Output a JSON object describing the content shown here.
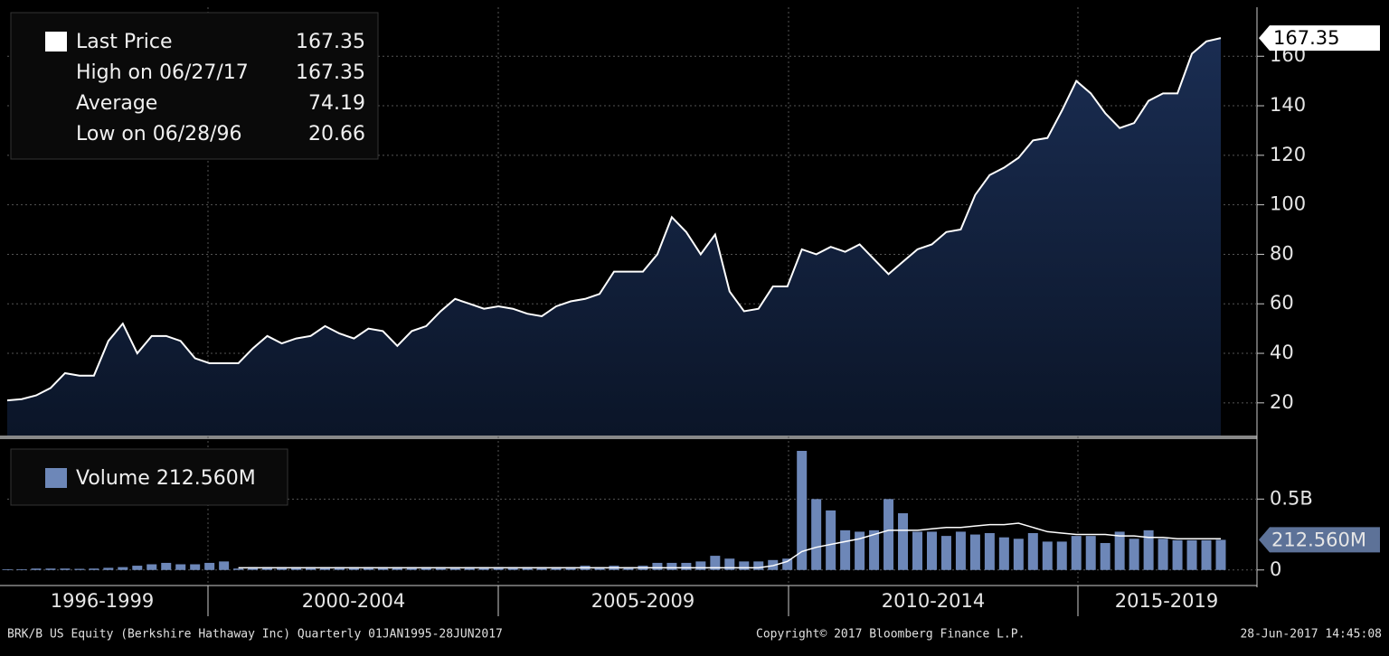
{
  "chart_data": [
    {
      "type": "area",
      "grid": true,
      "legend": [
        {
          "label": "Last Price",
          "value": 167.35
        },
        {
          "label": "High on 06/27/17",
          "value": 167.35
        },
        {
          "label": "Average",
          "value": 74.19
        },
        {
          "label": "Low on 06/28/96",
          "value": 20.66
        }
      ],
      "categories": [
        null,
        null,
        null,
        null,
        null,
        null,
        null,
        null,
        null,
        null,
        null,
        null,
        null,
        null,
        null,
        null,
        null,
        null,
        null,
        null,
        null,
        null,
        null,
        null,
        null,
        null,
        null,
        null,
        null,
        null,
        null,
        null,
        null,
        null,
        null,
        null,
        null,
        null,
        null,
        null,
        null,
        null,
        null,
        null,
        null,
        null,
        null,
        null,
        null,
        null,
        null,
        null,
        null,
        null,
        null,
        null,
        null,
        null,
        null,
        null,
        null,
        null,
        null,
        null,
        null,
        null,
        null,
        null,
        null,
        null,
        null,
        null,
        null,
        null,
        null,
        null,
        null,
        null,
        null,
        null,
        null,
        null,
        null,
        null,
        null
      ],
      "series": [
        {
          "name": "Last Price",
          "color": "#ffffff",
          "values": [
            21,
            21.5,
            23,
            26,
            32,
            31,
            31,
            45,
            52,
            40,
            47,
            47,
            45,
            38,
            36,
            36,
            36,
            42,
            47,
            44,
            46,
            47,
            51,
            48,
            46,
            50,
            49,
            43,
            49,
            51,
            57,
            62,
            60,
            58,
            59,
            58,
            56,
            55,
            59,
            61,
            62,
            64,
            73,
            73,
            73,
            80,
            95,
            89,
            80,
            88,
            65,
            57,
            58,
            67,
            67,
            82,
            80,
            83,
            81,
            84,
            78,
            72,
            77,
            82,
            84,
            89,
            90,
            104,
            112,
            115,
            119,
            126,
            127,
            138,
            150,
            145,
            137,
            131,
            133,
            142,
            145,
            145,
            161,
            166,
            167.35
          ]
        }
      ],
      "ylim": [
        6.8,
        179.8
      ],
      "yticks": [
        20,
        40,
        60,
        80,
        100,
        120,
        140,
        160
      ]
    },
    {
      "type": "bar",
      "grid": true,
      "legend": [
        {
          "label": "Volume 212.560M"
        }
      ],
      "x_labels": [
        "1996-1999",
        "2000-2004",
        "2005-2009",
        "2010-2014",
        "2015-2019"
      ],
      "series": [
        {
          "name": "Volume",
          "color": "#6d87b8",
          "values": [
            0.005,
            0.005,
            0.01,
            0.01,
            0.01,
            0.008,
            0.01,
            0.015,
            0.02,
            0.03,
            0.04,
            0.05,
            0.04,
            0.04,
            0.05,
            0.06,
            0.01,
            0.02,
            0.02,
            0.02,
            0.02,
            0.02,
            0.02,
            0.02,
            0.02,
            0.02,
            0.02,
            0.02,
            0.02,
            0.02,
            0.02,
            0.02,
            0.02,
            0.02,
            0.02,
            0.02,
            0.02,
            0.02,
            0.02,
            0.02,
            0.03,
            0.02,
            0.03,
            0.02,
            0.03,
            0.05,
            0.05,
            0.05,
            0.06,
            0.1,
            0.08,
            0.06,
            0.06,
            0.07,
            0.08,
            0.84,
            0.5,
            0.42,
            0.28,
            0.27,
            0.28,
            0.5,
            0.4,
            0.27,
            0.27,
            0.24,
            0.27,
            0.25,
            0.26,
            0.23,
            0.22,
            0.26,
            0.2,
            0.2,
            0.24,
            0.24,
            0.19,
            0.27,
            0.22,
            0.28,
            0.22,
            0.21,
            0.21,
            0.21,
            0.21256
          ],
          "value_labels": [
            null,
            null,
            null,
            null,
            null,
            null,
            null,
            null,
            null,
            null,
            null,
            null,
            null,
            null,
            null,
            null,
            null,
            null,
            null,
            null,
            null,
            null,
            null,
            null,
            null,
            null,
            null,
            null,
            null,
            null,
            null,
            null,
            null,
            null,
            null,
            null,
            null,
            null,
            null,
            null,
            null,
            null,
            null,
            null,
            null,
            null,
            null,
            null,
            null,
            null,
            null,
            null,
            null,
            null,
            null,
            null,
            null,
            null,
            null,
            null,
            null,
            null,
            null,
            null,
            null,
            null,
            null,
            null,
            null,
            null,
            null,
            null,
            null,
            null,
            null,
            null,
            null,
            null,
            null,
            null,
            null,
            null,
            null,
            null,
            "212.560M"
          ]
        },
        {
          "color": "#ffffff",
          "values": [
            null,
            null,
            null,
            null,
            null,
            null,
            null,
            null,
            null,
            null,
            null,
            null,
            null,
            null,
            null,
            null,
            0.015,
            0.015,
            0.015,
            0.015,
            0.015,
            0.015,
            0.015,
            0.015,
            0.015,
            0.015,
            0.015,
            0.015,
            0.015,
            0.015,
            0.015,
            0.015,
            0.015,
            0.015,
            0.015,
            0.015,
            0.015,
            0.015,
            0.015,
            0.015,
            0.015,
            0.015,
            0.015,
            0.015,
            0.015,
            0.015,
            0.015,
            0.015,
            0.015,
            0.015,
            0.015,
            0.015,
            0.015,
            0.03,
            0.06,
            0.13,
            0.16,
            0.18,
            0.2,
            0.22,
            0.25,
            0.28,
            0.28,
            0.28,
            0.29,
            0.3,
            0.3,
            0.31,
            0.32,
            0.32,
            0.33,
            0.3,
            0.27,
            0.26,
            0.25,
            0.25,
            0.25,
            0.24,
            0.24,
            0.23,
            0.23,
            0.22,
            0.22,
            0.22,
            0.22
          ]
        }
      ],
      "ylim": [
        -0.097,
        0.91
      ],
      "yticks": [
        0,
        {
          "value": 0.5,
          "label": "0.5B"
        }
      ]
    }
  ],
  "footer": {
    "left": "BRK/B US Equity (Berkshire Hathaway Inc)  Quarterly 01JAN1995-28JUN2017",
    "center": "Copyright© 2017 Bloomberg Finance L.P.",
    "right": "28-Jun-2017 14:45:08"
  }
}
